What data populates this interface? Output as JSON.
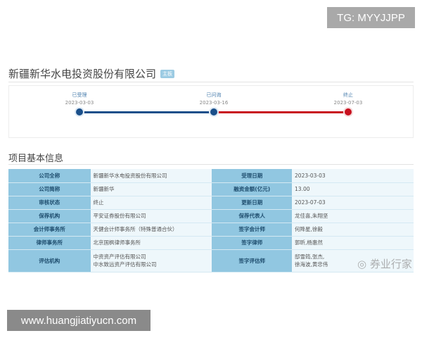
{
  "watermark_tg": "TG: MYYJJPP",
  "company": {
    "name": "新疆新华水电投资股份有限公司",
    "board": "主板"
  },
  "timeline": [
    {
      "label": "已受理",
      "date": "2023-03-03",
      "color": "#1a4f8a"
    },
    {
      "label": "已问询",
      "date": "2023-03-16",
      "color": "#1a4f8a"
    },
    {
      "label": "终止",
      "date": "2023-07-03",
      "color": "#c8101e"
    }
  ],
  "section_title": "项目基本信息",
  "rows": [
    {
      "k1": "公司全称",
      "v1": "新疆新华水电投资股份有限公司",
      "k2": "受理日期",
      "v2": "2023-03-03"
    },
    {
      "k1": "公司简称",
      "v1": "新疆新华",
      "k2": "融资金额(亿元)",
      "v2": "13.00"
    },
    {
      "k1": "审核状态",
      "v1": "终止",
      "k2": "更新日期",
      "v2": "2023-07-03"
    },
    {
      "k1": "保荐机构",
      "v1": "平安证券股份有限公司",
      "k2": "保荐代表人",
      "v2": "龙佳喜,朱翔坚"
    },
    {
      "k1": "会计师事务所",
      "v1": "天健会计师事务所（特殊普通合伙）",
      "k2": "签字会计师",
      "v2": "何降星,徐毅"
    },
    {
      "k1": "律师事务所",
      "v1": "北京国枫律师事务所",
      "k2": "签字律师",
      "v2": "郭昕,杨惠然"
    },
    {
      "k1": "评估机构",
      "v1": "中资资产评估有限公司",
      "v1b": "中水致远资产评估有限公司",
      "k2": "签字评估师",
      "v2": "邸雪筠,张杰,",
      "v2b": "徐海波,黄忠伟"
    }
  ],
  "watermark_weibo": "券业行家",
  "watermark_site": "www.huangjiatiyucn.com"
}
